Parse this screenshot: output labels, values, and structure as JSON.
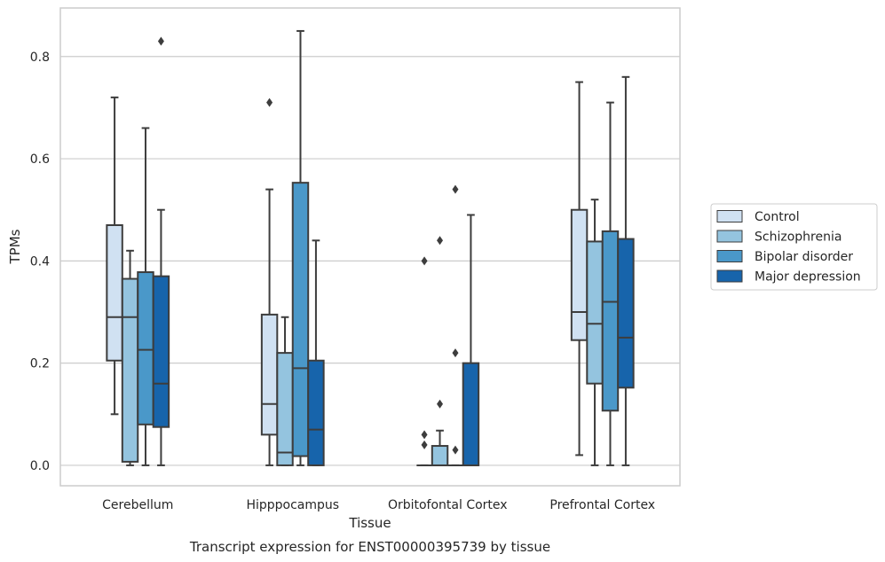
{
  "chart_data": {
    "type": "box",
    "title": "",
    "caption": "Transcript expression for ENST00000395739 by tissue",
    "xlabel": "Tissue",
    "ylabel": "TPMs",
    "ylim": [
      -0.04,
      0.895
    ],
    "yticks": [
      0.0,
      0.2,
      0.4,
      0.6,
      0.8
    ],
    "ytick_labels": [
      "0.0",
      "0.2",
      "0.4",
      "0.6",
      "0.8"
    ],
    "grid": "horizontal",
    "legend_position": "right",
    "categories": [
      "Cerebellum",
      "Hipppocampus",
      "Orbitofontal Cortex",
      "Prefrontal Cortex"
    ],
    "series": [
      {
        "name": "Control",
        "color": "#d0e1f2",
        "boxes": [
          {
            "whislo": 0.1,
            "q1": 0.205,
            "med": 0.29,
            "q3": 0.47,
            "whishi": 0.72,
            "fliers": []
          },
          {
            "whislo": 0.0,
            "q1": 0.06,
            "med": 0.12,
            "q3": 0.295,
            "whishi": 0.54,
            "fliers": [
              0.71
            ]
          },
          {
            "whislo": 0.0,
            "q1": 0.0,
            "med": 0.0,
            "q3": 0.0,
            "whishi": 0.0,
            "fliers": [
              0.04,
              0.06,
              0.4
            ]
          },
          {
            "whislo": 0.02,
            "q1": 0.245,
            "med": 0.3,
            "q3": 0.5,
            "whishi": 0.75,
            "fliers": []
          }
        ]
      },
      {
        "name": "Schizophrenia",
        "color": "#94c4df",
        "boxes": [
          {
            "whislo": 0.0,
            "q1": 0.007,
            "med": 0.29,
            "q3": 0.365,
            "whishi": 0.42,
            "fliers": []
          },
          {
            "whislo": 0.0,
            "q1": 0.0,
            "med": 0.025,
            "q3": 0.22,
            "whishi": 0.29,
            "fliers": []
          },
          {
            "whislo": 0.0,
            "q1": 0.0,
            "med": 0.0,
            "q3": 0.038,
            "whishi": 0.068,
            "fliers": [
              0.12,
              0.44
            ]
          },
          {
            "whislo": 0.0,
            "q1": 0.16,
            "med": 0.277,
            "q3": 0.438,
            "whishi": 0.52,
            "fliers": []
          }
        ]
      },
      {
        "name": "Bipolar disorder",
        "color": "#4a98c9",
        "boxes": [
          {
            "whislo": 0.0,
            "q1": 0.08,
            "med": 0.226,
            "q3": 0.378,
            "whishi": 0.66,
            "fliers": []
          },
          {
            "whislo": 0.0,
            "q1": 0.018,
            "med": 0.19,
            "q3": 0.553,
            "whishi": 0.85,
            "fliers": []
          },
          {
            "whislo": 0.0,
            "q1": 0.0,
            "med": 0.0,
            "q3": 0.0,
            "whishi": 0.0,
            "fliers": [
              0.03,
              0.22,
              0.54
            ]
          },
          {
            "whislo": 0.0,
            "q1": 0.107,
            "med": 0.32,
            "q3": 0.458,
            "whishi": 0.71,
            "fliers": []
          }
        ]
      },
      {
        "name": "Major depression",
        "color": "#1764ab",
        "boxes": [
          {
            "whislo": 0.0,
            "q1": 0.075,
            "med": 0.16,
            "q3": 0.37,
            "whishi": 0.5,
            "fliers": [
              0.83
            ]
          },
          {
            "whislo": 0.0,
            "q1": 0.0,
            "med": 0.07,
            "q3": 0.205,
            "whishi": 0.44,
            "fliers": []
          },
          {
            "whislo": 0.0,
            "q1": 0.0,
            "med": 0.0,
            "q3": 0.2,
            "whishi": 0.49,
            "fliers": []
          },
          {
            "whislo": 0.0,
            "q1": 0.152,
            "med": 0.25,
            "q3": 0.443,
            "whishi": 0.76,
            "fliers": []
          }
        ]
      }
    ]
  },
  "colors": {
    "edge": "#3d3d3d",
    "grid": "#cccccc",
    "axes_border": "#cccccc",
    "text": "#262626"
  }
}
